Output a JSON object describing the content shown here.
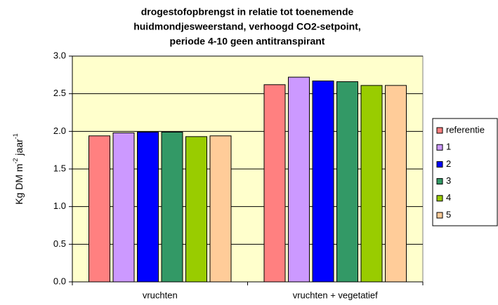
{
  "chart_data": {
    "type": "bar",
    "title": [
      "drogestofopbrengst in relatie tot toenemende",
      "huidmondjesweerstand, verhoogd CO2-setpoint,",
      "periode 4-10 geen antitranspirant"
    ],
    "y_label": [
      "Kg DM m",
      "-2",
      " jaar",
      "-1"
    ],
    "categories": [
      "vruchten",
      "vruchten + vegetatief"
    ],
    "series": [
      {
        "name": "referentie",
        "color": "#ff8080",
        "values": [
          1.94,
          2.62
        ]
      },
      {
        "name": "1",
        "color": "#cc99ff",
        "values": [
          1.98,
          2.72
        ]
      },
      {
        "name": "2",
        "color": "#0000ff",
        "values": [
          1.99,
          2.67
        ]
      },
      {
        "name": "3",
        "color": "#339966",
        "values": [
          1.99,
          2.66
        ]
      },
      {
        "name": "4",
        "color": "#99cc00",
        "values": [
          1.93,
          2.61
        ]
      },
      {
        "name": "5",
        "color": "#ffcc99",
        "values": [
          1.94,
          2.61
        ]
      }
    ],
    "ylim": [
      0,
      3
    ],
    "yticks": [
      {
        "value": 0,
        "label": "0.0"
      },
      {
        "value": 0.5,
        "label": "0.5"
      },
      {
        "value": 1,
        "label": "1.0"
      },
      {
        "value": 1.5,
        "label": "1.5"
      },
      {
        "value": 2,
        "label": "2.0"
      },
      {
        "value": 2.5,
        "label": "2.5"
      },
      {
        "value": 3,
        "label": "3.0"
      }
    ],
    "grid": true,
    "legend": "right",
    "plot_background": "#ffffcc"
  }
}
